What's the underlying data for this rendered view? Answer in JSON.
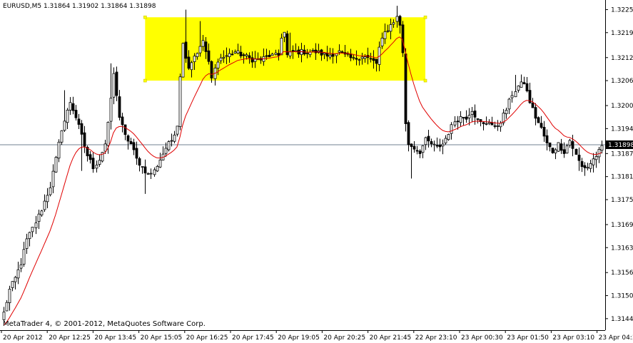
{
  "symbol_info": "EURUSD,M5  1.31864 1.31902 1.31864 1.31898",
  "copyright": "MetaTrader 4, © 2001-2012, MetaQuotes Software Corp.",
  "colors": {
    "background": "#ffffff",
    "candle": "#000000",
    "bull_body": "#ffffff",
    "bear_body": "#000000",
    "moving_average": "#e00000",
    "price_line": "#708090",
    "rectangle": "#ffff00",
    "current_price_bg": "#000000",
    "current_price_text": "#ffffff"
  },
  "chart_data": {
    "type": "candlestick",
    "indicator": "moving-average",
    "current_price": "1.31898",
    "ylim": [
      1.31415,
      1.32275
    ],
    "y_ticks": [
      "1.32250",
      "1.32190",
      "1.32125",
      "1.32065",
      "1.32000",
      "1.31940",
      "1.31875",
      "1.31815",
      "1.31755",
      "1.31690",
      "1.31630",
      "1.31565",
      "1.31505",
      "1.31445"
    ],
    "x_ticks": [
      "20 Apr 2012",
      "20 Apr 12:25",
      "20 Apr 13:45",
      "20 Apr 15:05",
      "20 Apr 16:25",
      "20 Apr 17:45",
      "20 Apr 19:05",
      "20 Apr 20:25",
      "20 Apr 21:45",
      "22 Apr 23:10",
      "23 Apr 00:30",
      "23 Apr 01:50",
      "23 Apr 03:10",
      "23 Apr 04:30"
    ],
    "rectangle": {
      "price_top": 1.3223,
      "price_bottom": 1.32065,
      "from": "20 Apr 15:05",
      "to": "22 Apr 23:10"
    },
    "anchors": [
      [
        0,
        1.3146
      ],
      [
        2,
        1.3152
      ],
      [
        4,
        1.3155
      ],
      [
        6,
        1.3159
      ],
      [
        8,
        1.3165
      ],
      [
        10,
        1.3168
      ],
      [
        13,
        1.3173
      ],
      [
        16,
        1.3179
      ],
      [
        18,
        1.3186
      ],
      [
        20,
        1.3194
      ],
      [
        21,
        1.3196
      ],
      [
        23,
        1.3201
      ],
      [
        25,
        1.3197
      ],
      [
        27,
        1.3192
      ],
      [
        29,
        1.3187
      ],
      [
        31,
        1.3184
      ],
      [
        33,
        1.3186
      ],
      [
        35,
        1.319
      ],
      [
        36,
        1.3195
      ],
      [
        37,
        1.3202
      ],
      [
        38,
        1.3208
      ],
      [
        39,
        1.3203
      ],
      [
        40,
        1.3197
      ],
      [
        42,
        1.3192
      ],
      [
        44,
        1.319
      ],
      [
        46,
        1.3186
      ],
      [
        48,
        1.3184
      ],
      [
        50,
        1.3182
      ],
      [
        52,
        1.3183
      ],
      [
        54,
        1.3186
      ],
      [
        56,
        1.3189
      ],
      [
        58,
        1.3191
      ],
      [
        60,
        1.3195
      ],
      [
        61,
        1.3208
      ],
      [
        62,
        1.3216
      ],
      [
        64,
        1.321
      ],
      [
        66,
        1.3213
      ],
      [
        68,
        1.3215
      ],
      [
        69,
        1.3217
      ],
      [
        71,
        1.3211
      ],
      [
        72,
        1.3207
      ],
      [
        74,
        1.3212
      ],
      [
        77,
        1.3213
      ],
      [
        80,
        1.3214
      ],
      [
        83,
        1.3213
      ],
      [
        86,
        1.3212
      ],
      [
        89,
        1.3212
      ],
      [
        92,
        1.3213
      ],
      [
        95,
        1.3213
      ],
      [
        96,
        1.3218
      ],
      [
        97,
        1.3219
      ],
      [
        98,
        1.3213
      ],
      [
        100,
        1.3214
      ],
      [
        104,
        1.3214
      ],
      [
        108,
        1.3214
      ],
      [
        112,
        1.3213
      ],
      [
        116,
        1.3214
      ],
      [
        118,
        1.3213
      ],
      [
        121,
        1.3212
      ],
      [
        124,
        1.3213
      ],
      [
        127,
        1.3212
      ],
      [
        129,
        1.3211
      ],
      [
        130,
        1.3215
      ],
      [
        132,
        1.3219
      ],
      [
        134,
        1.3221
      ],
      [
        136,
        1.3223
      ],
      [
        137,
        1.3221
      ],
      [
        138,
        1.3214
      ],
      [
        139,
        1.3195
      ],
      [
        140,
        1.319
      ],
      [
        142,
        1.3189
      ],
      [
        144,
        1.3188
      ],
      [
        146,
        1.3191
      ],
      [
        148,
        1.319
      ],
      [
        150,
        1.3189
      ],
      [
        152,
        1.319
      ],
      [
        154,
        1.3193
      ],
      [
        156,
        1.3196
      ],
      [
        158,
        1.3197
      ],
      [
        160,
        1.3197
      ],
      [
        162,
        1.3199
      ],
      [
        164,
        1.3196
      ],
      [
        166,
        1.3195
      ],
      [
        168,
        1.3196
      ],
      [
        170,
        1.3194
      ],
      [
        172,
        1.3196
      ],
      [
        174,
        1.3199
      ],
      [
        176,
        1.3203
      ],
      [
        178,
        1.3205
      ],
      [
        180,
        1.3206
      ],
      [
        182,
        1.3201
      ],
      [
        184,
        1.3197
      ],
      [
        186,
        1.3194
      ],
      [
        188,
        1.319
      ],
      [
        190,
        1.3188
      ],
      [
        192,
        1.319
      ],
      [
        194,
        1.3188
      ],
      [
        196,
        1.3191
      ],
      [
        198,
        1.3187
      ],
      [
        200,
        1.3184
      ],
      [
        202,
        1.3184
      ],
      [
        204,
        1.3186
      ],
      [
        206,
        1.3188
      ],
      [
        207,
        1.3189
      ]
    ]
  }
}
